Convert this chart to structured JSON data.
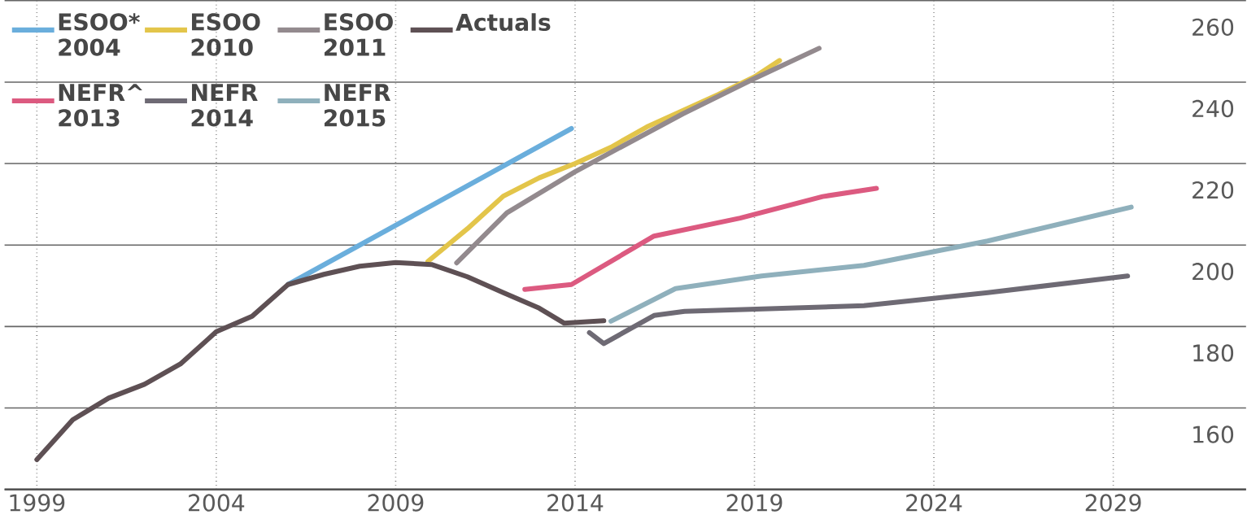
{
  "chart_data": {
    "type": "line",
    "xlim": [
      1998.1,
      2032.7
    ],
    "ylim": [
      140,
      260
    ],
    "xticks": [
      1999,
      2004,
      2009,
      2014,
      2019,
      2024,
      2029
    ],
    "yticks": [
      {
        "value": 140,
        "label": null
      },
      160,
      180,
      200,
      220,
      240,
      260
    ],
    "grid": true,
    "legend": "top left",
    "line_style": "solid",
    "marker": "none",
    "series": [
      {
        "name": "ESOO* 2004",
        "color": "#6aaedc",
        "x": [
          2006,
          2013.9
        ],
        "values": [
          190.3,
          228.6
        ]
      },
      {
        "name": "ESOO 2010",
        "color": "#e3c54a",
        "x": [
          2009.9,
          2011,
          2012,
          2013,
          2014,
          2015,
          2016,
          2017,
          2018,
          2019,
          2019.7
        ],
        "values": [
          196,
          204,
          212,
          216.5,
          220,
          224,
          229,
          233,
          237,
          241.3,
          245.3
        ]
      },
      {
        "name": "ESOO 2011",
        "color": "#938a8e",
        "x": [
          2010.7,
          2012.1,
          2014,
          2017,
          2019,
          2020.8
        ],
        "values": [
          195.6,
          207.9,
          218,
          232.2,
          240.9,
          248.3
        ]
      },
      {
        "name": "Actuals",
        "color": "#5e5054",
        "x": [
          1999,
          2000,
          2001,
          2002,
          2003,
          2004,
          2005,
          2006,
          2007,
          2008,
          2009,
          2010,
          2011,
          2012,
          2013,
          2013.7,
          2014.8
        ],
        "values": [
          147.3,
          157.1,
          162.4,
          165.8,
          170.8,
          178.7,
          182.5,
          190.3,
          192.8,
          194.8,
          195.7,
          195.2,
          192.2,
          188.3,
          184.5,
          180.8,
          181.4
        ]
      },
      {
        "name": "NEFR^ 2013",
        "color": "#dc5a80",
        "x": [
          2012.6,
          2013.9,
          2016.2,
          2018.6,
          2020.9,
          2022.4
        ],
        "values": [
          189.1,
          190.3,
          202.2,
          206.6,
          211.9,
          213.9
        ]
      },
      {
        "name": "NEFR 2014",
        "color": "#6e6a74",
        "x": [
          2014.4,
          2014.8,
          2016.2,
          2017.05,
          2022.05,
          2025.5,
          2029.4
        ],
        "values": [
          178.5,
          175.8,
          182.7,
          183.7,
          185.1,
          188.3,
          192.4
        ]
      },
      {
        "name": "NEFR 2015",
        "color": "#8fb0bc",
        "x": [
          2015,
          2016.8,
          2019.2,
          2022.05,
          2025.5,
          2029.5
        ],
        "values": [
          181.3,
          189.3,
          192.4,
          195,
          201,
          209.3
        ]
      }
    ]
  }
}
